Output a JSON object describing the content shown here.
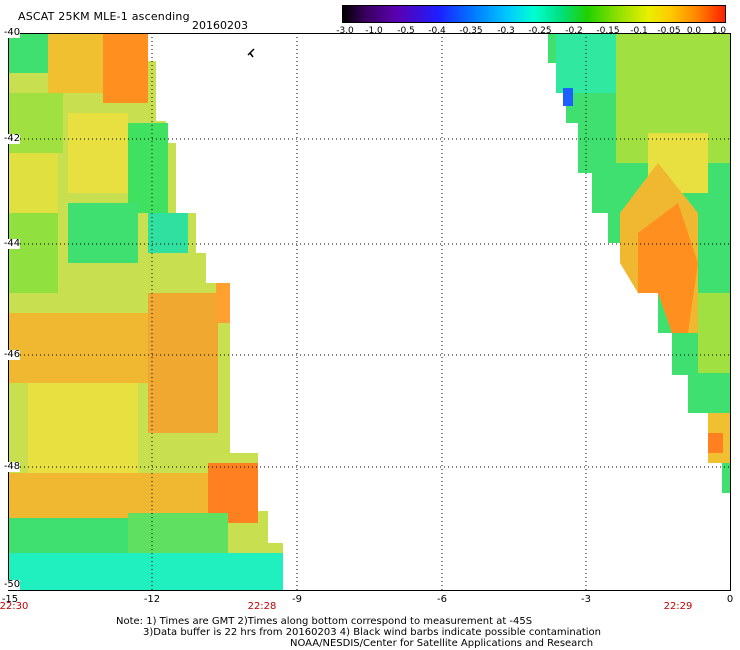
{
  "title": "ASCAT 25KM MLE-1 ascending",
  "date": "20160203",
  "colorbar": {
    "labels": [
      "-3.0",
      "-1.0",
      "-0.5",
      "-0.4",
      "-0.35",
      "-0.3",
      "-0.25",
      "-0.2",
      "-0.15",
      "-0.1",
      "-0.05",
      "0.0",
      "1.0"
    ]
  },
  "axes": {
    "y_ticks": [
      "-40",
      "-42",
      "-44",
      "-46",
      "-48",
      "-50"
    ],
    "x_ticks": [
      "-15",
      "-12",
      "-9",
      "-6",
      "-3",
      "0"
    ]
  },
  "times": {
    "left": "22:30",
    "mid": "22:28",
    "right": "22:29"
  },
  "notes": {
    "line1": "Note: 1) Times are GMT 2)Times along bottom correspond to measurement at -45S",
    "line2": "3)Data buffer is 22 hrs from 20160203 4) Black wind barbs indicate possible contamination",
    "line3": "NOAA/NESDIS/Center for Satellite Applications and Research"
  }
}
